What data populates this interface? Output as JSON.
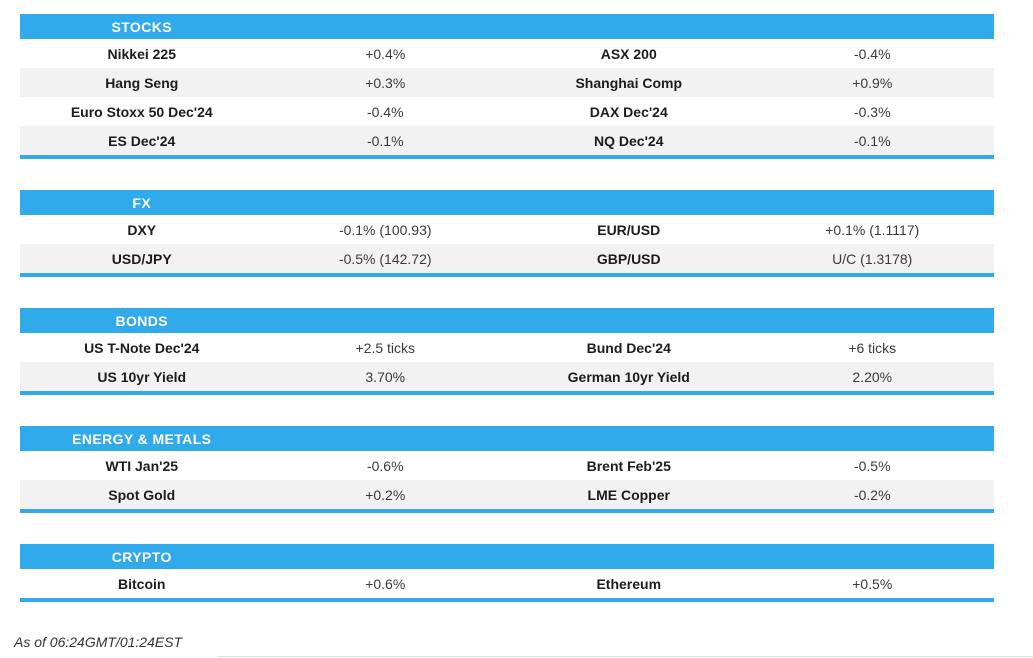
{
  "accent_color": "#31aaec",
  "row_alt_color": "#f2f2f2",
  "sections": [
    {
      "title": "STOCKS",
      "rows": [
        {
          "l1": "Nikkei 225",
          "v1": "+0.4%",
          "l2": "ASX 200",
          "v2": "-0.4%"
        },
        {
          "l1": "Hang Seng",
          "v1": "+0.3%",
          "l2": "Shanghai Comp",
          "v2": "+0.9%"
        },
        {
          "l1": "Euro Stoxx 50 Dec'24",
          "v1": "-0.4%",
          "l2": "DAX Dec'24",
          "v2": "-0.3%"
        },
        {
          "l1": "ES Dec'24",
          "v1": "-0.1%",
          "l2": "NQ Dec'24",
          "v2": "-0.1%"
        }
      ]
    },
    {
      "title": "FX",
      "rows": [
        {
          "l1": "DXY",
          "v1": "-0.1% (100.93)",
          "l2": "EUR/USD",
          "v2": "+0.1% (1.1117)"
        },
        {
          "l1": "USD/JPY",
          "v1": "-0.5% (142.72)",
          "l2": "GBP/USD",
          "v2": "U/C (1.3178)"
        }
      ]
    },
    {
      "title": "BONDS",
      "rows": [
        {
          "l1": "US T-Note Dec'24",
          "v1": "+2.5 ticks",
          "l2": "Bund Dec'24",
          "v2": "+6 ticks"
        },
        {
          "l1": "US 10yr Yield",
          "v1": "3.70%",
          "l2": "German 10yr Yield",
          "v2": "2.20%"
        }
      ]
    },
    {
      "title": "ENERGY & METALS",
      "rows": [
        {
          "l1": "WTI Jan'25",
          "v1": "-0.6%",
          "l2": "Brent Feb'25",
          "v2": "-0.5%"
        },
        {
          "l1": "Spot Gold",
          "v1": "+0.2%",
          "l2": "LME Copper",
          "v2": "-0.2%"
        }
      ]
    },
    {
      "title": "CRYPTO",
      "rows": [
        {
          "l1": "Bitcoin",
          "v1": "+0.6%",
          "l2": "Ethereum",
          "v2": "+0.5%"
        }
      ]
    }
  ],
  "footer": {
    "timestamp": "As of 06:24GMT/01:24EST"
  }
}
